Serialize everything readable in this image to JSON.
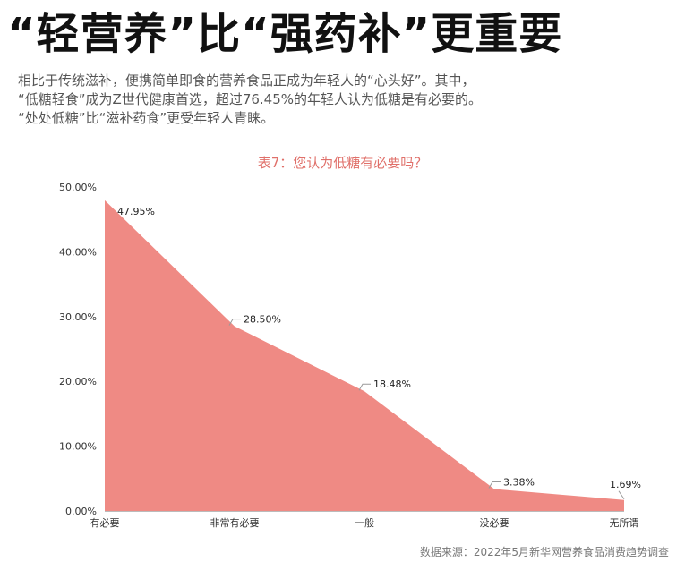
{
  "headline": "“轻营养”比“强药补”更重要",
  "intro_lines": [
    "相比于传统滋补，便携简单即食的营养食品正成为年轻人的“心头好”。其中，",
    "“低糖轻食”成为Z世代健康首选，超过76.45%的年轻人认为低糖是有必要的。",
    "“处处低糖”比“滋补药食”更受年轻人青睐。"
  ],
  "source": "数据来源：2022年5月新华网营养食品消费趋势调查",
  "colors": {
    "area": "#ef8a84",
    "title": "#e0706a"
  },
  "chart_data": {
    "type": "area",
    "title": "表7：您认为低糖有必要吗？",
    "categories": [
      "有必要",
      "非常有必要",
      "一般",
      "没必要",
      "无所谓"
    ],
    "values": [
      47.95,
      28.5,
      18.48,
      3.38,
      1.69
    ],
    "data_labels": [
      "47.95%",
      "28.50%",
      "18.48%",
      "3.38%",
      "1.69%"
    ],
    "y_ticks": [
      "0.00%",
      "10.00%",
      "20.00%",
      "30.00%",
      "40.00%",
      "50.00%"
    ],
    "ylim": [
      0,
      50
    ],
    "grid": false,
    "legend": "none"
  }
}
